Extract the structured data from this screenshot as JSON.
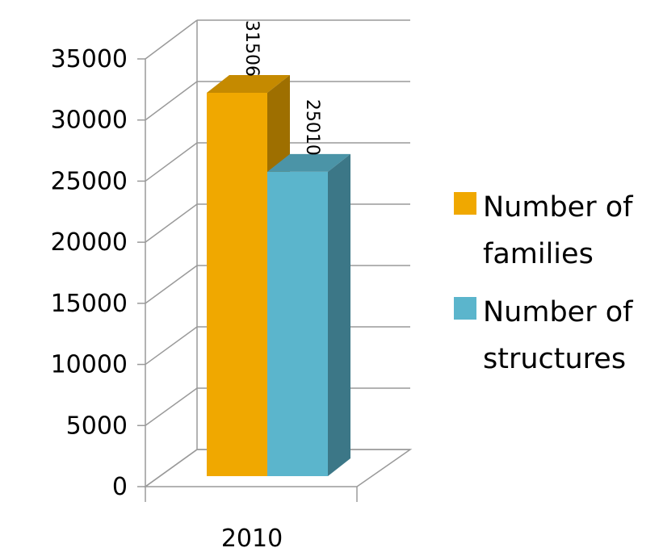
{
  "chart_data": {
    "type": "bar",
    "title": "",
    "xlabel": "",
    "ylabel": "",
    "categories": [
      "2010"
    ],
    "series": [
      {
        "name": "Number of families",
        "values": [
          31506
        ],
        "color": "#f0a800"
      },
      {
        "name": "Number of structures",
        "values": [
          25010
        ],
        "color": "#5bb5cc"
      }
    ],
    "ylim": [
      0,
      35000
    ],
    "yticks": [
      "0",
      "5000",
      "10000",
      "15000",
      "20000",
      "25000",
      "30000",
      "35000"
    ],
    "data_labels": [
      "31506",
      "25010"
    ],
    "grid": true,
    "three_d": true,
    "legend_position": "right"
  }
}
